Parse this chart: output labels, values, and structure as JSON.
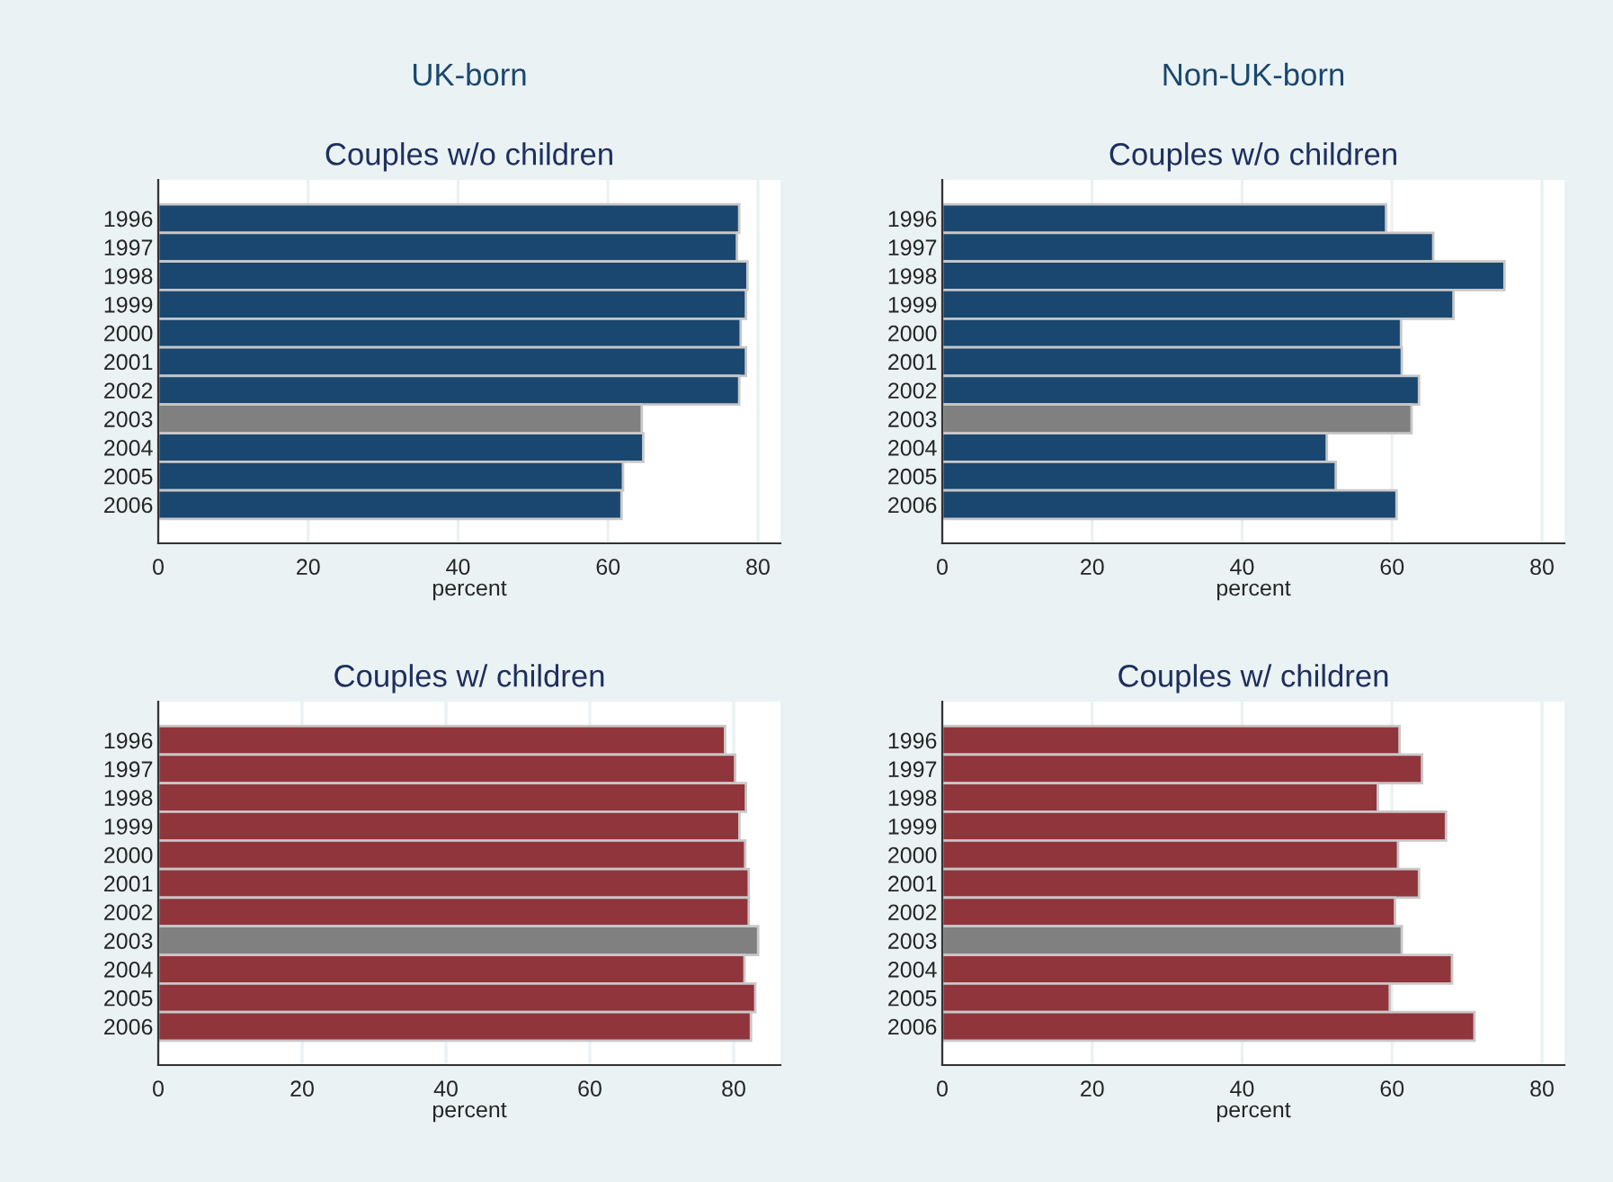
{
  "chart_data": [
    {
      "type": "bar",
      "orientation": "horizontal",
      "subtitle": "UK-born",
      "title": "Couples w/o children",
      "xlabel": "percent",
      "categories": [
        "1996",
        "1997",
        "1998",
        "1999",
        "2000",
        "2001",
        "2002",
        "2003",
        "2004",
        "2005",
        "2006"
      ],
      "values": [
        77.5,
        77.2,
        78.6,
        78.4,
        77.7,
        78.4,
        77.5,
        64.5,
        64.7,
        62.0,
        61.8
      ],
      "colors": [
        "#1a476f",
        "#1a476f",
        "#1a476f",
        "#1a476f",
        "#1a476f",
        "#1a476f",
        "#1a476f",
        "#808080",
        "#1a476f",
        "#1a476f",
        "#1a476f"
      ],
      "xlim": [
        0,
        83
      ],
      "xticks": [
        0,
        20,
        40,
        60,
        80
      ],
      "grid": "x"
    },
    {
      "type": "bar",
      "orientation": "horizontal",
      "subtitle": "Non-UK-born",
      "title": "Couples w/o children",
      "xlabel": "percent",
      "categories": [
        "1996",
        "1997",
        "1998",
        "1999",
        "2000",
        "2001",
        "2002",
        "2003",
        "2004",
        "2005",
        "2006"
      ],
      "values": [
        59.2,
        65.5,
        75.0,
        68.2,
        61.2,
        61.3,
        63.6,
        62.6,
        51.3,
        52.5,
        60.6
      ],
      "colors": [
        "#1a476f",
        "#1a476f",
        "#1a476f",
        "#1a476f",
        "#1a476f",
        "#1a476f",
        "#1a476f",
        "#808080",
        "#1a476f",
        "#1a476f",
        "#1a476f"
      ],
      "xlim": [
        0,
        83
      ],
      "xticks": [
        0,
        20,
        40,
        60,
        80
      ],
      "grid": "x"
    },
    {
      "type": "bar",
      "orientation": "horizontal",
      "title": "Couples w/ children",
      "xlabel": "percent",
      "categories": [
        "1996",
        "1997",
        "1998",
        "1999",
        "2000",
        "2001",
        "2002",
        "2003",
        "2004",
        "2005",
        "2006"
      ],
      "values": [
        78.8,
        80.2,
        81.7,
        80.8,
        81.6,
        82.1,
        82.1,
        83.4,
        81.5,
        83.0,
        82.4
      ],
      "colors": [
        "#90353b",
        "#90353b",
        "#90353b",
        "#90353b",
        "#90353b",
        "#90353b",
        "#90353b",
        "#808080",
        "#90353b",
        "#90353b",
        "#90353b"
      ],
      "xlim": [
        0,
        86.5
      ],
      "xticks": [
        0,
        20,
        40,
        60,
        80
      ],
      "grid": "x"
    },
    {
      "type": "bar",
      "orientation": "horizontal",
      "title": "Couples w/ children",
      "xlabel": "percent",
      "categories": [
        "1996",
        "1997",
        "1998",
        "1999",
        "2000",
        "2001",
        "2002",
        "2003",
        "2004",
        "2005",
        "2006"
      ],
      "values": [
        61.0,
        64.0,
        58.1,
        67.2,
        60.8,
        63.6,
        60.4,
        61.3,
        68.0,
        59.7,
        71.0
      ],
      "colors": [
        "#90353b",
        "#90353b",
        "#90353b",
        "#90353b",
        "#90353b",
        "#90353b",
        "#90353b",
        "#808080",
        "#90353b",
        "#90353b",
        "#90353b"
      ],
      "xlim": [
        0,
        83
      ],
      "xticks": [
        0,
        20,
        40,
        60,
        80
      ],
      "grid": "x"
    }
  ]
}
